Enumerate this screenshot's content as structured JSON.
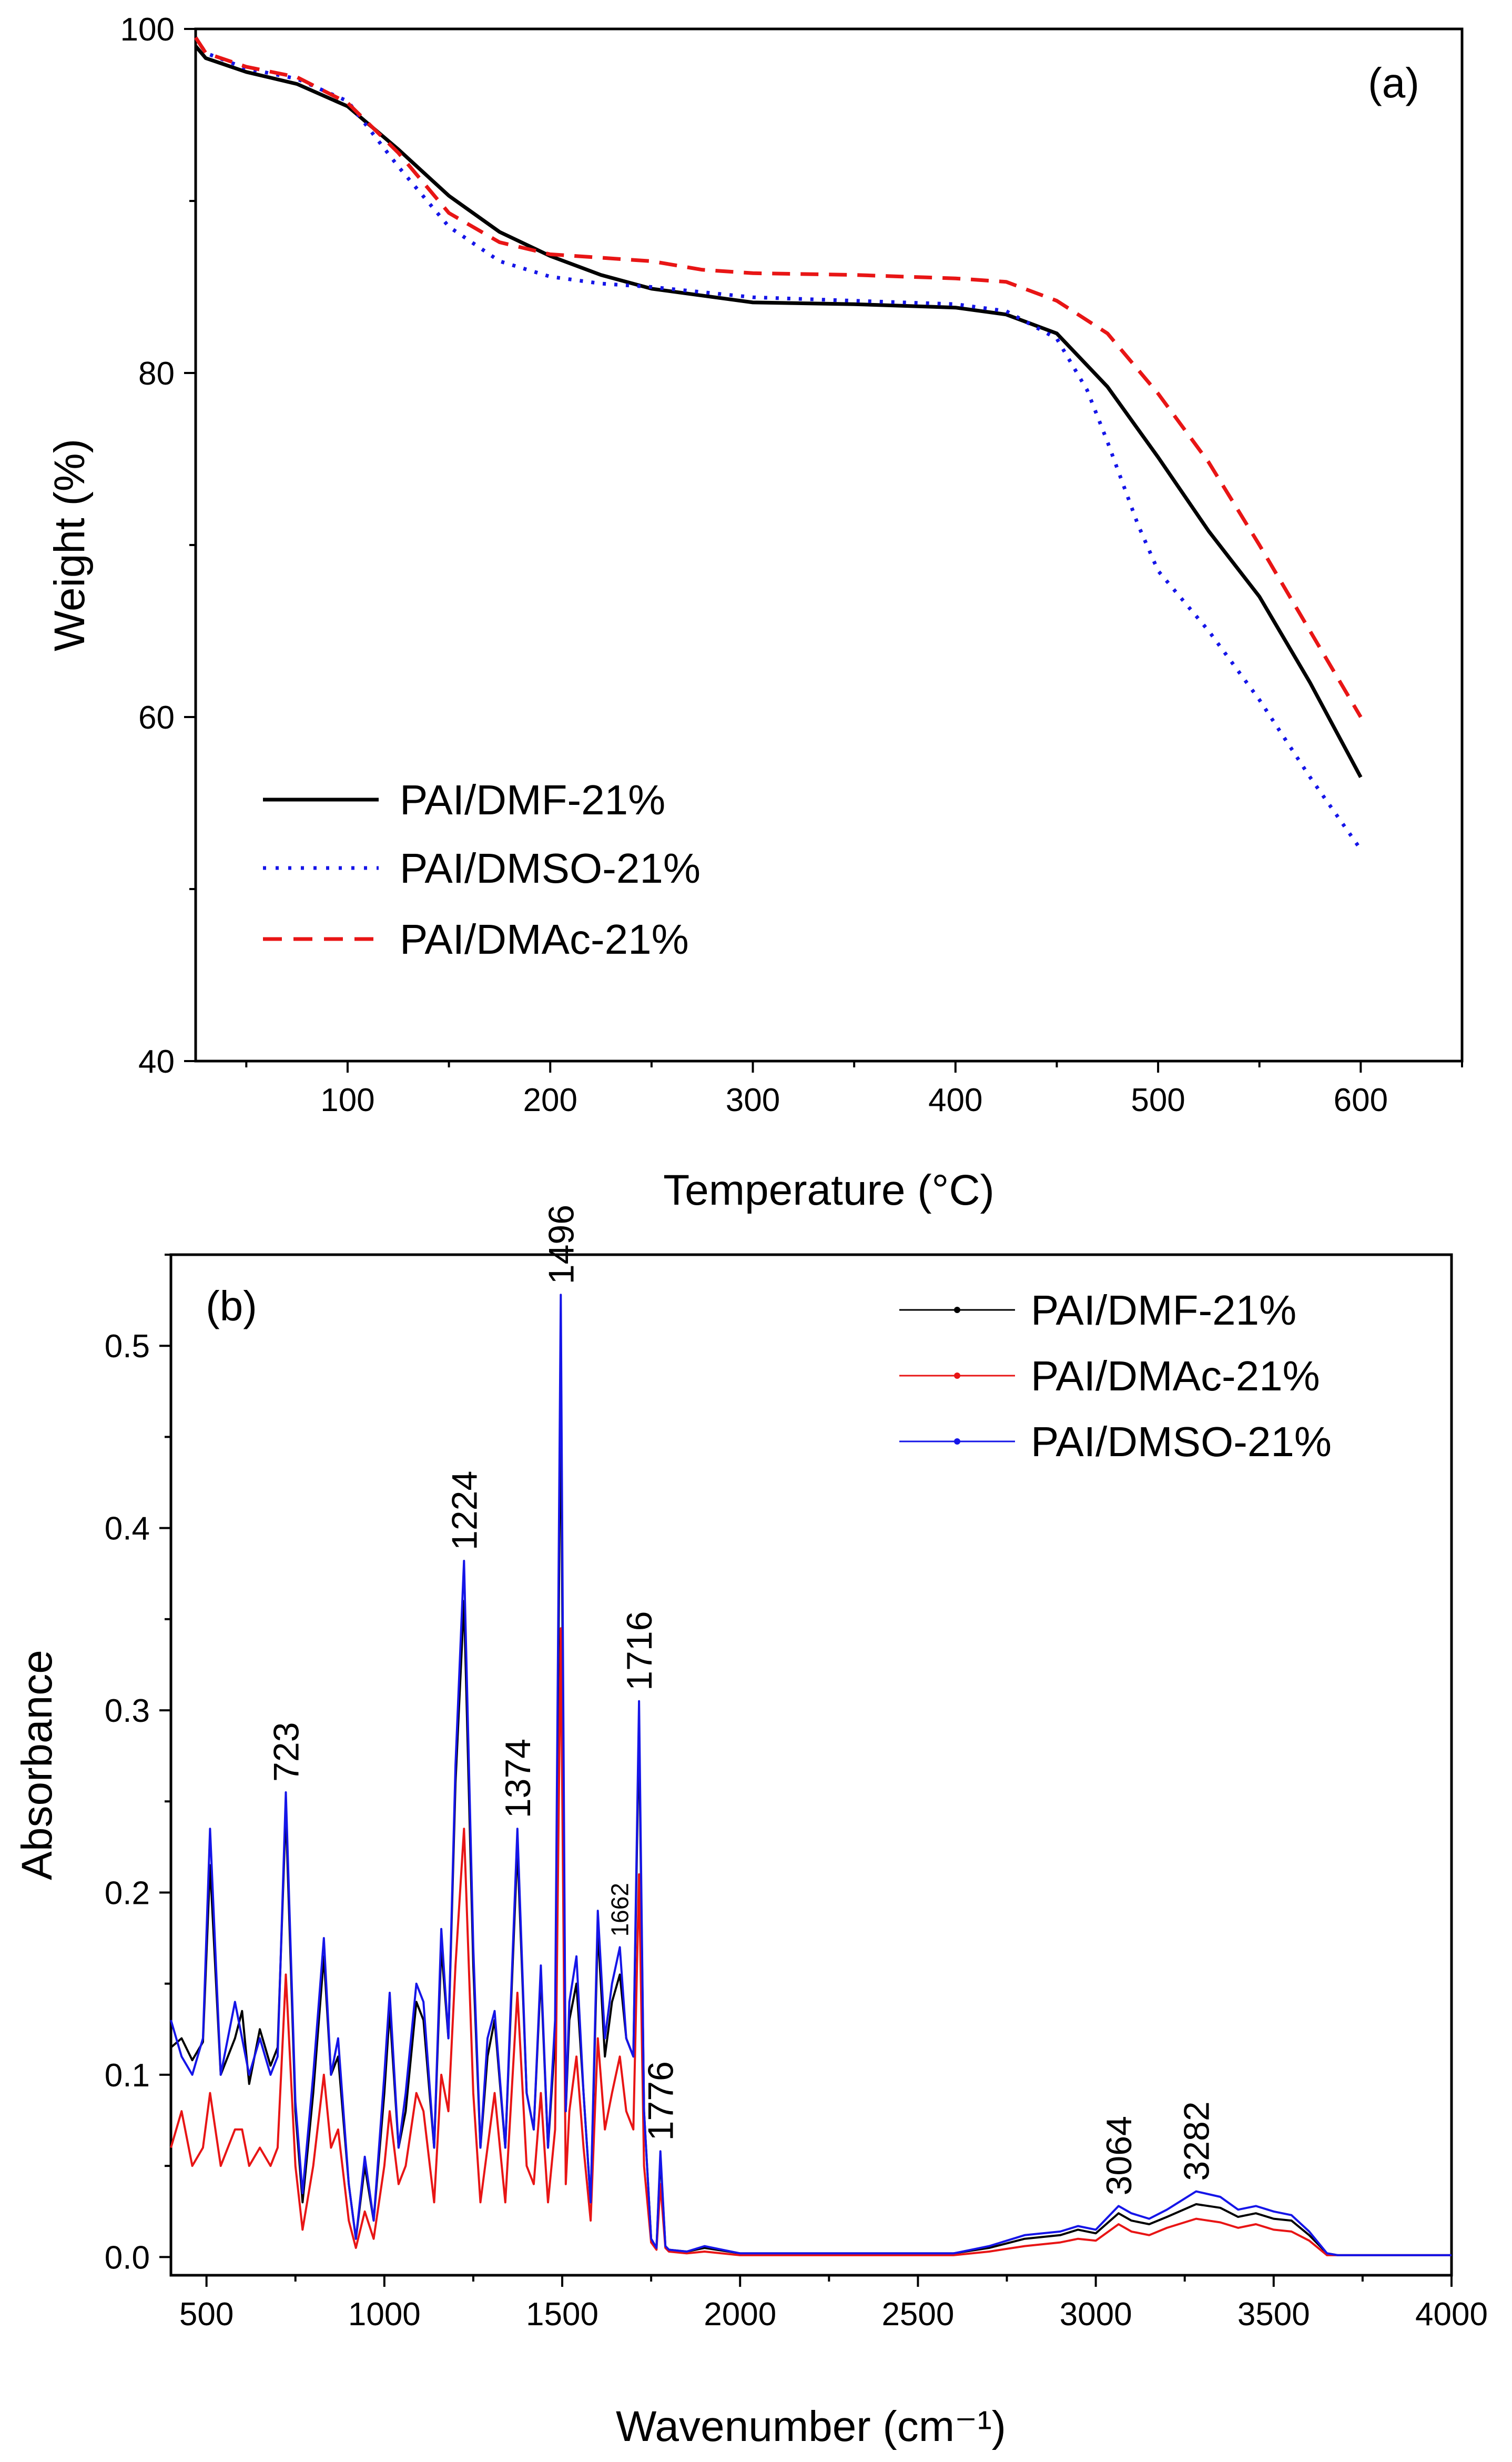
{
  "chart_data": [
    {
      "type": "line",
      "panel_label": "(a)",
      "xlabel": "Temperature (°C)",
      "ylabel": "Weight (%)",
      "xlim": [
        25,
        650
      ],
      "ylim": [
        40,
        100
      ],
      "xticks": [
        100,
        200,
        300,
        400,
        500,
        600
      ],
      "yticks": [
        40,
        60,
        80,
        100
      ],
      "grid": false,
      "legend_position": "bottom-left",
      "series": [
        {
          "name": "PAI/DMF-21%",
          "color": "#000000",
          "dash": "solid",
          "x": [
            25,
            30,
            50,
            75,
            100,
            125,
            150,
            175,
            200,
            225,
            250,
            300,
            350,
            400,
            425,
            450,
            475,
            500,
            525,
            550,
            575,
            600
          ],
          "y": [
            99,
            98.3,
            97.5,
            96.8,
            95.5,
            93.0,
            90.3,
            88.2,
            86.8,
            85.7,
            84.9,
            84.1,
            84.0,
            83.8,
            83.4,
            82.3,
            79.2,
            75.1,
            70.8,
            67.0,
            62.0,
            56.5
          ]
        },
        {
          "name": "PAI/DMSO-21%",
          "color": "#1515e8",
          "dash": "dotted",
          "x": [
            25,
            30,
            50,
            75,
            100,
            125,
            150,
            175,
            200,
            225,
            250,
            300,
            350,
            400,
            425,
            450,
            465,
            475,
            490,
            500,
            525,
            550,
            575,
            600
          ],
          "y": [
            99.5,
            98.6,
            97.7,
            97.1,
            95.8,
            92.0,
            88.5,
            86.5,
            85.6,
            85.2,
            85.0,
            84.4,
            84.2,
            84.0,
            83.6,
            82.0,
            79.0,
            76.0,
            71.2,
            68.5,
            65.0,
            61.0,
            56.5,
            52.3
          ]
        },
        {
          "name": "PAI/DMAc-21%",
          "color": "#e81515",
          "dash": "dashed",
          "x": [
            25,
            30,
            50,
            75,
            100,
            125,
            150,
            175,
            200,
            225,
            250,
            275,
            300,
            350,
            400,
            425,
            450,
            475,
            500,
            525,
            550,
            575,
            600
          ],
          "y": [
            99.5,
            98.6,
            97.8,
            97.2,
            95.7,
            92.8,
            89.3,
            87.6,
            86.9,
            86.7,
            86.5,
            86.0,
            85.8,
            85.7,
            85.5,
            85.3,
            84.2,
            82.3,
            78.8,
            74.8,
            70.0,
            65.0,
            60.0
          ]
        }
      ]
    },
    {
      "type": "line",
      "panel_label": "(b)",
      "xlabel": "Wavenumber (cm⁻¹)",
      "ylabel": "Absorbance",
      "xlim": [
        400,
        4000
      ],
      "ylim": [
        -0.01,
        0.55
      ],
      "xticks": [
        500,
        1000,
        1500,
        2000,
        2500,
        3000,
        3500,
        4000
      ],
      "yticks": [
        0.0,
        0.1,
        0.2,
        0.3,
        0.4,
        0.5
      ],
      "ytick_labels": [
        "0.0",
        "0.1",
        "0.2",
        "0.3",
        "0.4",
        "0.5"
      ],
      "grid": false,
      "legend_position": "top-right",
      "peaks": [
        {
          "x": 723,
          "y": 0.255,
          "label": "723"
        },
        {
          "x": 1224,
          "y": 0.382,
          "label": "1224"
        },
        {
          "x": 1374,
          "y": 0.235,
          "label": "1374"
        },
        {
          "x": 1496,
          "y": 0.528,
          "label": "1496"
        },
        {
          "x": 1662,
          "y": 0.17,
          "label": "1662"
        },
        {
          "x": 1716,
          "y": 0.305,
          "label": "1716"
        },
        {
          "x": 1776,
          "y": 0.058,
          "label": "1776"
        },
        {
          "x": 3064,
          "y": 0.028,
          "label": "3064"
        },
        {
          "x": 3282,
          "y": 0.036,
          "label": "3282"
        }
      ],
      "series": [
        {
          "name": "PAI/DMF-21%",
          "color": "#000000",
          "x": [
            400,
            430,
            460,
            490,
            510,
            540,
            580,
            600,
            620,
            650,
            680,
            700,
            723,
            750,
            770,
            800,
            830,
            850,
            870,
            900,
            920,
            945,
            970,
            1000,
            1015,
            1040,
            1060,
            1090,
            1110,
            1140,
            1160,
            1180,
            1200,
            1224,
            1250,
            1270,
            1290,
            1310,
            1340,
            1374,
            1400,
            1420,
            1440,
            1460,
            1480,
            1496,
            1510,
            1520,
            1540,
            1560,
            1580,
            1600,
            1620,
            1640,
            1662,
            1680,
            1700,
            1716,
            1730,
            1750,
            1765,
            1776,
            1790,
            1800,
            1850,
            1900,
            2000,
            2200,
            2400,
            2600,
            2700,
            2800,
            2900,
            2950,
            3000,
            3064,
            3100,
            3150,
            3200,
            3282,
            3350,
            3400,
            3450,
            3500,
            3550,
            3600,
            3650,
            3680,
            3700,
            3800,
            4000
          ],
          "y": [
            0.115,
            0.12,
            0.108,
            0.118,
            0.215,
            0.1,
            0.12,
            0.135,
            0.095,
            0.125,
            0.105,
            0.115,
            0.245,
            0.08,
            0.03,
            0.09,
            0.165,
            0.1,
            0.11,
            0.04,
            0.01,
            0.05,
            0.02,
            0.09,
            0.135,
            0.06,
            0.08,
            0.14,
            0.13,
            0.06,
            0.17,
            0.12,
            0.26,
            0.36,
            0.16,
            0.06,
            0.11,
            0.13,
            0.06,
            0.225,
            0.09,
            0.07,
            0.155,
            0.06,
            0.12,
            0.48,
            0.08,
            0.13,
            0.15,
            0.09,
            0.03,
            0.18,
            0.11,
            0.14,
            0.155,
            0.12,
            0.11,
            0.29,
            0.08,
            0.01,
            0.005,
            0.055,
            0.006,
            0.004,
            0.003,
            0.005,
            0.002,
            0.002,
            0.002,
            0.002,
            0.005,
            0.01,
            0.012,
            0.015,
            0.013,
            0.024,
            0.02,
            0.018,
            0.022,
            0.029,
            0.027,
            0.022,
            0.024,
            0.021,
            0.02,
            0.012,
            0.002,
            0.001,
            0.001,
            0.001,
            0.001
          ]
        },
        {
          "name": "PAI/DMAc-21%",
          "color": "#e81515",
          "x": [
            400,
            430,
            460,
            490,
            510,
            540,
            580,
            600,
            620,
            650,
            680,
            700,
            723,
            750,
            770,
            800,
            830,
            850,
            870,
            900,
            920,
            945,
            970,
            1000,
            1015,
            1040,
            1060,
            1090,
            1110,
            1140,
            1160,
            1180,
            1200,
            1224,
            1250,
            1270,
            1290,
            1310,
            1340,
            1374,
            1400,
            1420,
            1440,
            1460,
            1480,
            1496,
            1510,
            1520,
            1540,
            1560,
            1580,
            1600,
            1620,
            1640,
            1662,
            1680,
            1700,
            1716,
            1730,
            1750,
            1765,
            1776,
            1790,
            1800,
            1850,
            1900,
            2000,
            2200,
            2400,
            2600,
            2700,
            2800,
            2900,
            2950,
            3000,
            3064,
            3100,
            3150,
            3200,
            3282,
            3350,
            3400,
            3450,
            3500,
            3550,
            3600,
            3650,
            3680,
            3700,
            3800,
            4000
          ],
          "y": [
            0.06,
            0.08,
            0.05,
            0.06,
            0.09,
            0.05,
            0.07,
            0.07,
            0.05,
            0.06,
            0.05,
            0.06,
            0.155,
            0.05,
            0.015,
            0.05,
            0.1,
            0.06,
            0.07,
            0.02,
            0.005,
            0.025,
            0.01,
            0.05,
            0.08,
            0.04,
            0.05,
            0.09,
            0.08,
            0.03,
            0.1,
            0.08,
            0.16,
            0.235,
            0.09,
            0.03,
            0.06,
            0.09,
            0.03,
            0.145,
            0.05,
            0.04,
            0.09,
            0.03,
            0.07,
            0.345,
            0.04,
            0.08,
            0.11,
            0.06,
            0.02,
            0.12,
            0.07,
            0.09,
            0.11,
            0.08,
            0.07,
            0.21,
            0.05,
            0.008,
            0.004,
            0.04,
            0.005,
            0.003,
            0.002,
            0.003,
            0.001,
            0.001,
            0.001,
            0.001,
            0.003,
            0.006,
            0.008,
            0.01,
            0.009,
            0.018,
            0.014,
            0.012,
            0.016,
            0.021,
            0.019,
            0.016,
            0.018,
            0.015,
            0.014,
            0.009,
            0.001,
            0.001,
            0.001,
            0.001,
            0.001
          ]
        },
        {
          "name": "PAI/DMSO-21%",
          "color": "#1515e8",
          "x": [
            400,
            430,
            460,
            490,
            510,
            540,
            580,
            600,
            620,
            650,
            680,
            700,
            723,
            750,
            770,
            800,
            830,
            850,
            870,
            900,
            920,
            945,
            970,
            1000,
            1015,
            1040,
            1060,
            1090,
            1110,
            1140,
            1160,
            1180,
            1200,
            1224,
            1250,
            1270,
            1290,
            1310,
            1340,
            1374,
            1400,
            1420,
            1440,
            1460,
            1480,
            1496,
            1510,
            1520,
            1540,
            1560,
            1580,
            1600,
            1620,
            1640,
            1662,
            1680,
            1700,
            1716,
            1730,
            1750,
            1765,
            1776,
            1790,
            1800,
            1850,
            1900,
            2000,
            2200,
            2400,
            2600,
            2700,
            2800,
            2900,
            2950,
            3000,
            3064,
            3100,
            3150,
            3200,
            3282,
            3350,
            3400,
            3450,
            3500,
            3550,
            3600,
            3650,
            3680,
            3700,
            3800,
            4000
          ],
          "y": [
            0.13,
            0.11,
            0.1,
            0.12,
            0.235,
            0.1,
            0.14,
            0.12,
            0.1,
            0.12,
            0.1,
            0.11,
            0.255,
            0.085,
            0.035,
            0.1,
            0.175,
            0.1,
            0.12,
            0.04,
            0.01,
            0.055,
            0.02,
            0.1,
            0.145,
            0.06,
            0.09,
            0.15,
            0.14,
            0.06,
            0.18,
            0.12,
            0.27,
            0.382,
            0.17,
            0.06,
            0.12,
            0.135,
            0.06,
            0.235,
            0.09,
            0.07,
            0.16,
            0.06,
            0.13,
            0.528,
            0.08,
            0.14,
            0.165,
            0.09,
            0.03,
            0.19,
            0.12,
            0.15,
            0.17,
            0.12,
            0.11,
            0.305,
            0.08,
            0.01,
            0.005,
            0.058,
            0.006,
            0.004,
            0.003,
            0.006,
            0.002,
            0.002,
            0.002,
            0.002,
            0.006,
            0.012,
            0.014,
            0.017,
            0.015,
            0.028,
            0.024,
            0.021,
            0.026,
            0.036,
            0.033,
            0.026,
            0.028,
            0.025,
            0.023,
            0.014,
            0.002,
            0.001,
            0.001,
            0.001,
            0.001
          ]
        }
      ]
    }
  ]
}
